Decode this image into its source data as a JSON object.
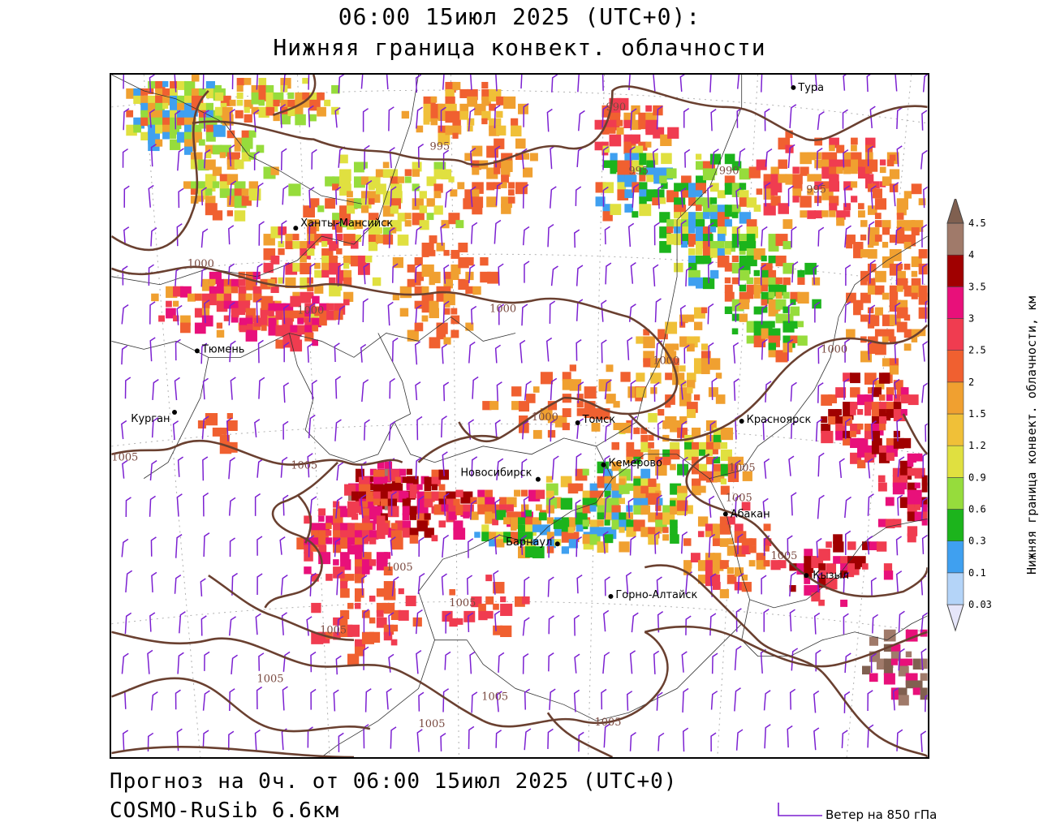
{
  "header": {
    "line1": "06:00 15июл 2025 (UTC+0):",
    "line2": "Нижняя граница конвект. облачности"
  },
  "footer": {
    "line1": "Прогноз на 0ч. от 06:00 15июл 2025 (UTC+0)",
    "line2": "COSMO-RuSib 6.6км"
  },
  "wind_legend": {
    "label": "Ветер на 850 гПа",
    "color": "#7b1fd1"
  },
  "colorbar": {
    "title": "Нижняя граница конвект. облачности, км",
    "ticks": [
      "0.03",
      "0.1",
      "0.3",
      "0.6",
      "0.9",
      "1.2",
      "1.5",
      "2",
      "2.5",
      "3",
      "3.5",
      "4",
      "4.5"
    ],
    "colors": [
      "#e6e6fa",
      "#b4d4f8",
      "#3fa0f0",
      "#1cb41c",
      "#96dc3c",
      "#e0e040",
      "#f0c038",
      "#f0a030",
      "#f06030",
      "#f03c50",
      "#e8107a",
      "#a00000",
      "#a07a6a",
      "#806050"
    ]
  },
  "cities": [
    {
      "name": "Тура"
    },
    {
      "name": "Ханты-Мансийск"
    },
    {
      "name": "Тюмень"
    },
    {
      "name": "Курган"
    },
    {
      "name": "Томск"
    },
    {
      "name": "Красноярск"
    },
    {
      "name": "Новосибирск"
    },
    {
      "name": "Кемерово"
    },
    {
      "name": "Абакан"
    },
    {
      "name": "Барнаул"
    },
    {
      "name": "Кызыл"
    },
    {
      "name": "Горно-Алтайск"
    }
  ],
  "isobars": [
    "990",
    "990",
    "995",
    "995",
    "995",
    "1000",
    "1000",
    "1000",
    "1000",
    "1000",
    "1000",
    "1005",
    "1005",
    "1005",
    "1005",
    "1005",
    "1005",
    "1005",
    "1005",
    "1005",
    "1005",
    "1005",
    "1005"
  ]
}
